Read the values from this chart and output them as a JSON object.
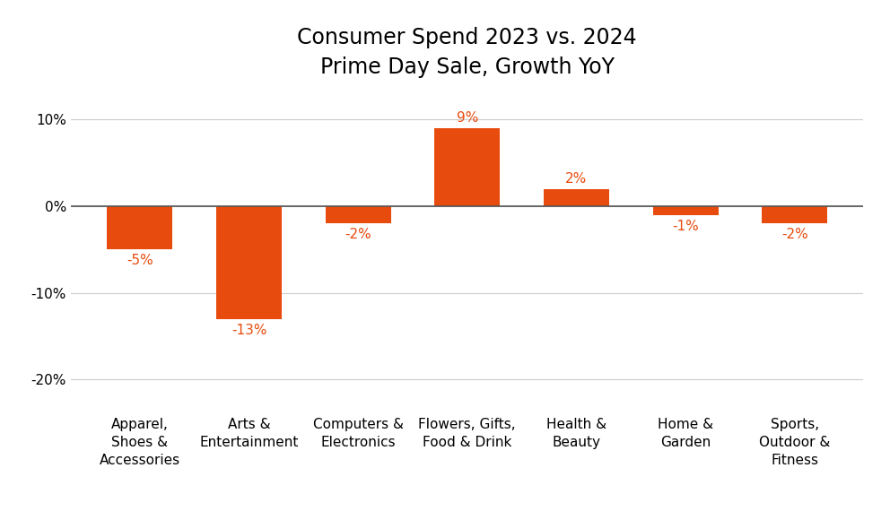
{
  "title_line1": "Consumer Spend 2023 vs. 2024",
  "title_line2": "Prime Day Sale, Growth YoY",
  "categories": [
    "Apparel,\nShoes &\nAccessories",
    "Arts &\nEntertainment",
    "Computers &\nElectronics",
    "Flowers, Gifts,\nFood & Drink",
    "Health &\nBeauty",
    "Home &\nGarden",
    "Sports,\nOutdoor &\nFitness"
  ],
  "values": [
    -5,
    -13,
    -2,
    9,
    2,
    -1,
    -2
  ],
  "bar_color": "#E84B0E",
  "label_color": "#E84B0E",
  "background_color": "#ffffff",
  "ylim": [
    -23,
    13
  ],
  "yticks": [
    -20,
    -10,
    0,
    10
  ],
  "ytick_labels": [
    "-20%",
    "-10%",
    "0%",
    "10%"
  ],
  "grid_color": "#cccccc",
  "title_fontsize": 17,
  "label_fontsize": 11,
  "tick_label_fontsize": 11,
  "bar_label_fontsize": 11,
  "bar_width": 0.6
}
